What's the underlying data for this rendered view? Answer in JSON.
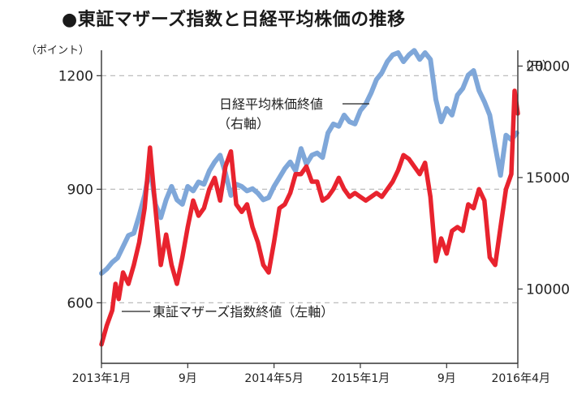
{
  "title": "●東証マザーズ指数と日経平均株価の推移",
  "chart_data": {
    "type": "line",
    "title": "●東証マザーズ指数と日経平均株価の推移",
    "left_axis": {
      "unit": "（ポイント）",
      "ticks": [
        600,
        900,
        1200
      ],
      "ylim": [
        440,
        1250
      ]
    },
    "right_axis": {
      "unit": "（円）",
      "ticks": [
        10000,
        15000,
        20000
      ],
      "ylim": [
        6667,
        20417
      ]
    },
    "x_axis": {
      "range": [
        0,
        38.6
      ],
      "ticks": [
        {
          "label": "2013年1月",
          "x": 0
        },
        {
          "label": "9月",
          "x": 8
        },
        {
          "label": "2014年5月",
          "x": 16
        },
        {
          "label": "2015年1月",
          "x": 24
        },
        {
          "label": "9月",
          "x": 32
        },
        {
          "label": "2016年4月",
          "x": 39
        }
      ]
    },
    "grid": "dashed horizontal",
    "series": [
      {
        "name": "日経平均株価終値（右軸）",
        "axis": "right",
        "color": "#7fa7d9",
        "points": [
          [
            0,
            10700
          ],
          [
            0.5,
            10900
          ],
          [
            1,
            11200
          ],
          [
            1.5,
            11400
          ],
          [
            2,
            11900
          ],
          [
            2.5,
            12400
          ],
          [
            3,
            12500
          ],
          [
            3.5,
            13300
          ],
          [
            4,
            14200
          ],
          [
            4.5,
            15500
          ],
          [
            5,
            13800
          ],
          [
            5.5,
            13200
          ],
          [
            6,
            14000
          ],
          [
            6.5,
            14600
          ],
          [
            7,
            14000
          ],
          [
            7.5,
            13800
          ],
          [
            8,
            14600
          ],
          [
            8.5,
            14400
          ],
          [
            9,
            14800
          ],
          [
            9.5,
            14700
          ],
          [
            10,
            15300
          ],
          [
            10.5,
            15700
          ],
          [
            11,
            16000
          ],
          [
            11.5,
            15200
          ],
          [
            12,
            14200
          ],
          [
            12.5,
            14700
          ],
          [
            13,
            14600
          ],
          [
            13.5,
            14400
          ],
          [
            14,
            14500
          ],
          [
            14.5,
            14300
          ],
          [
            15,
            14000
          ],
          [
            15.5,
            14100
          ],
          [
            16,
            14600
          ],
          [
            16.5,
            15000
          ],
          [
            17,
            15400
          ],
          [
            17.5,
            15700
          ],
          [
            18,
            15300
          ],
          [
            18.5,
            16300
          ],
          [
            19,
            15600
          ],
          [
            19.5,
            16000
          ],
          [
            20,
            16100
          ],
          [
            20.5,
            15900
          ],
          [
            21,
            17000
          ],
          [
            21.5,
            17400
          ],
          [
            22,
            17300
          ],
          [
            22.5,
            17800
          ],
          [
            23,
            17500
          ],
          [
            23.5,
            17400
          ],
          [
            24,
            18000
          ],
          [
            24.5,
            18300
          ],
          [
            25,
            18800
          ],
          [
            25.5,
            19400
          ],
          [
            26,
            19700
          ],
          [
            26.5,
            20200
          ],
          [
            27,
            20500
          ],
          [
            27.5,
            20600
          ],
          [
            28,
            20200
          ],
          [
            28.5,
            20500
          ],
          [
            29,
            20700
          ],
          [
            29.5,
            20300
          ],
          [
            30,
            20600
          ],
          [
            30.5,
            20300
          ],
          [
            31,
            18500
          ],
          [
            31.5,
            17500
          ],
          [
            32,
            18100
          ],
          [
            32.5,
            17800
          ],
          [
            33,
            18700
          ],
          [
            33.5,
            19000
          ],
          [
            34,
            19600
          ],
          [
            34.5,
            19800
          ],
          [
            35,
            18900
          ],
          [
            35.5,
            18400
          ],
          [
            36,
            17800
          ],
          [
            36.5,
            16400
          ],
          [
            37,
            15100
          ],
          [
            37.5,
            16900
          ],
          [
            38,
            16700
          ],
          [
            38.5,
            17000
          ]
        ]
      },
      {
        "name": "東証マザーズ指数終値（左軸）",
        "axis": "left",
        "color": "#e8232e",
        "points": [
          [
            0,
            490
          ],
          [
            0.5,
            540
          ],
          [
            1,
            580
          ],
          [
            1.3,
            650
          ],
          [
            1.6,
            610
          ],
          [
            2,
            680
          ],
          [
            2.5,
            650
          ],
          [
            3,
            700
          ],
          [
            3.5,
            760
          ],
          [
            4,
            850
          ],
          [
            4.5,
            1010
          ],
          [
            5,
            850
          ],
          [
            5.5,
            700
          ],
          [
            6,
            780
          ],
          [
            6.5,
            700
          ],
          [
            7,
            650
          ],
          [
            7.5,
            720
          ],
          [
            8,
            800
          ],
          [
            8.5,
            870
          ],
          [
            9,
            830
          ],
          [
            9.5,
            850
          ],
          [
            10,
            900
          ],
          [
            10.5,
            930
          ],
          [
            11,
            870
          ],
          [
            11.5,
            960
          ],
          [
            12,
            1000
          ],
          [
            12.5,
            860
          ],
          [
            13,
            840
          ],
          [
            13.5,
            860
          ],
          [
            14,
            800
          ],
          [
            14.5,
            760
          ],
          [
            15,
            700
          ],
          [
            15.5,
            680
          ],
          [
            16,
            760
          ],
          [
            16.5,
            850
          ],
          [
            17,
            860
          ],
          [
            17.5,
            890
          ],
          [
            18,
            940
          ],
          [
            18.5,
            940
          ],
          [
            19,
            960
          ],
          [
            19.5,
            920
          ],
          [
            20,
            920
          ],
          [
            20.5,
            870
          ],
          [
            21,
            880
          ],
          [
            21.5,
            900
          ],
          [
            22,
            930
          ],
          [
            22.5,
            900
          ],
          [
            23,
            880
          ],
          [
            23.5,
            890
          ],
          [
            24,
            880
          ],
          [
            24.5,
            870
          ],
          [
            25,
            880
          ],
          [
            25.5,
            890
          ],
          [
            26,
            880
          ],
          [
            26.5,
            900
          ],
          [
            27,
            920
          ],
          [
            27.5,
            950
          ],
          [
            28,
            990
          ],
          [
            28.5,
            980
          ],
          [
            29,
            960
          ],
          [
            29.5,
            940
          ],
          [
            30,
            970
          ],
          [
            30.5,
            880
          ],
          [
            31,
            710
          ],
          [
            31.5,
            770
          ],
          [
            32,
            730
          ],
          [
            32.5,
            790
          ],
          [
            33,
            800
          ],
          [
            33.5,
            790
          ],
          [
            34,
            860
          ],
          [
            34.5,
            850
          ],
          [
            35,
            900
          ],
          [
            35.5,
            870
          ],
          [
            36,
            720
          ],
          [
            36.5,
            700
          ],
          [
            37,
            800
          ],
          [
            37.5,
            900
          ],
          [
            38,
            940
          ],
          [
            38.3,
            1160
          ],
          [
            38.6,
            1100
          ]
        ]
      }
    ],
    "annotations": [
      {
        "text": "日経平均株価終値",
        "sub": "（右軸）"
      },
      {
        "text": "東証マザーズ指数終値（左軸）"
      }
    ]
  }
}
